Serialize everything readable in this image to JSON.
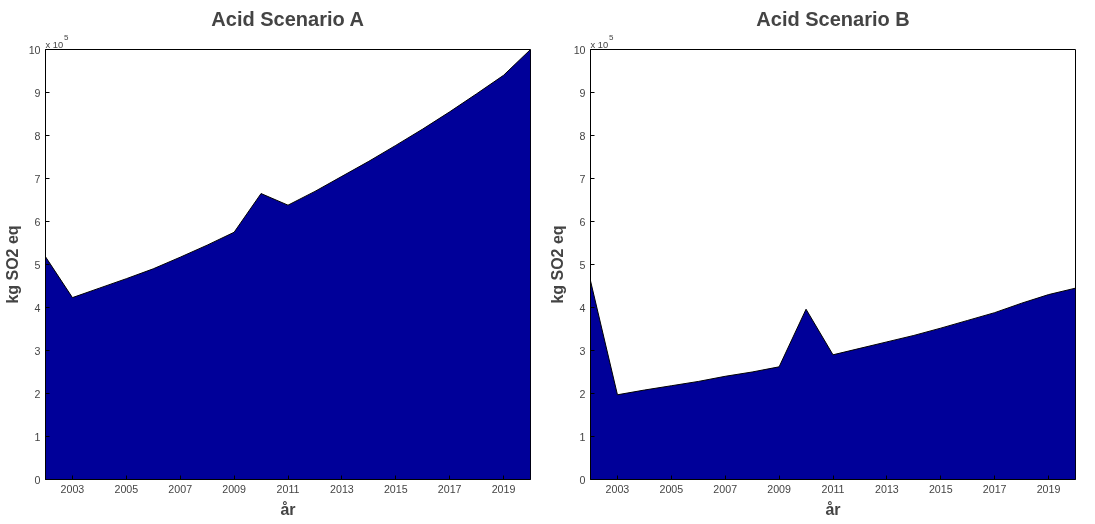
{
  "chart_data": [
    {
      "type": "area",
      "title": "Acid Scenario A",
      "xlabel": "år",
      "ylabel": "kg SO2 eq",
      "annotations": [
        "x 10$^{5}$"
      ],
      "x": [
        2002,
        2003,
        2004,
        2005,
        2006,
        2007,
        2008,
        2009,
        2010,
        2011,
        2012,
        2013,
        2014,
        2015,
        2016,
        2017,
        2018,
        2019,
        2020
      ],
      "series": [
        {
          "color": "#000099",
          "values": [
            5.18,
            4.23,
            4.45,
            4.67,
            4.9,
            5.17,
            5.45,
            5.75,
            6.65,
            6.38,
            6.7,
            7.05,
            7.4,
            7.77,
            8.15,
            8.55,
            8.97,
            9.4,
            10.0
          ]
        }
      ],
      "xlim": [
        2002,
        2020
      ],
      "ylim": [
        0,
        10
      ],
      "xticks": [
        2003,
        2005,
        2007,
        2009,
        2011,
        2013,
        2015,
        2017,
        2019
      ],
      "yticks": [
        0,
        1,
        2,
        3,
        4,
        5,
        6,
        7,
        8,
        9,
        10
      ]
    },
    {
      "type": "area",
      "title": "Acid Scenario B",
      "xlabel": "år",
      "ylabel": "kg SO2 eq",
      "annotations": [
        "x 10$^{5}$"
      ],
      "x": [
        2002,
        2003,
        2004,
        2005,
        2006,
        2007,
        2008,
        2009,
        2010,
        2011,
        2012,
        2013,
        2014,
        2015,
        2016,
        2017,
        2018,
        2019,
        2020
      ],
      "series": [
        {
          "color": "#000099",
          "values": [
            4.62,
            1.97,
            2.08,
            2.18,
            2.28,
            2.4,
            2.5,
            2.62,
            3.96,
            2.9,
            3.05,
            3.2,
            3.35,
            3.52,
            3.7,
            3.88,
            4.1,
            4.3,
            4.45
          ]
        }
      ],
      "xlim": [
        2002,
        2020
      ],
      "ylim": [
        0,
        10
      ],
      "xticks": [
        2003,
        2005,
        2007,
        2009,
        2011,
        2013,
        2015,
        2017,
        2019
      ],
      "yticks": [
        0,
        1,
        2,
        3,
        4,
        5,
        6,
        7,
        8,
        9,
        10
      ]
    }
  ]
}
